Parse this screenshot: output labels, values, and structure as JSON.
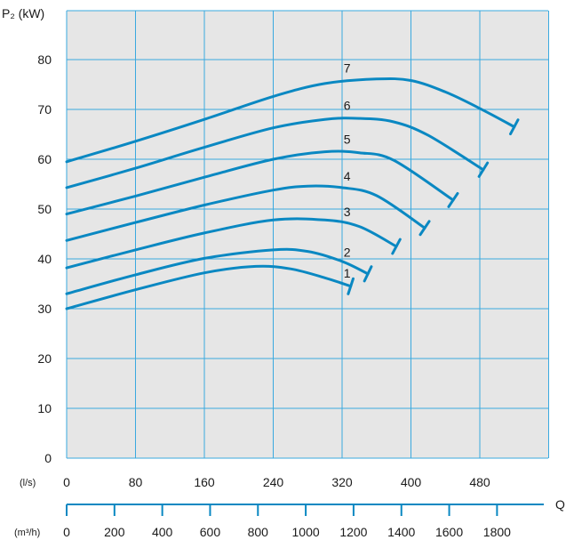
{
  "chart_data": {
    "type": "line",
    "title": "",
    "ylabel": "P₂ (kW)",
    "xlabel": "Q",
    "x_unit_ls": "(l/s)",
    "x_unit_m3h": "(m³/h)",
    "xlim": [
      0,
      560
    ],
    "ylim": [
      0,
      85
    ],
    "grid": true,
    "y_ticks": [
      0,
      10,
      20,
      30,
      40,
      50,
      60,
      70,
      80
    ],
    "x_ticks_ls": [
      0,
      80,
      160,
      240,
      320,
      400,
      480
    ],
    "x_ticks_m3h": [
      0,
      200,
      400,
      600,
      800,
      1000,
      1200,
      1400,
      1600,
      1800
    ],
    "colors": {
      "plot_bg": "#e6e6e6",
      "grid": "#3aa9df",
      "curve": "#0a88c2",
      "axis": "#0a88c2"
    },
    "series": [
      {
        "name": "1",
        "x": [
          0,
          80,
          160,
          220,
          260,
          300,
          330
        ],
        "y": [
          30,
          33.8,
          37.2,
          38.5,
          38,
          36.2,
          34.5
        ]
      },
      {
        "name": "2",
        "x": [
          0,
          80,
          160,
          240,
          280,
          320,
          350
        ],
        "y": [
          33,
          36.8,
          40.1,
          41.8,
          41.5,
          39.5,
          37
        ]
      },
      {
        "name": "3",
        "x": [
          0,
          80,
          160,
          240,
          300,
          340,
          383
        ],
        "y": [
          38.2,
          41.8,
          45.2,
          47.8,
          47.8,
          46.5,
          42.5
        ]
      },
      {
        "name": "4",
        "x": [
          0,
          80,
          160,
          240,
          280,
          320,
          360,
          416
        ],
        "y": [
          43.7,
          47.3,
          50.8,
          53.8,
          54.6,
          54.3,
          52.7,
          46.2
        ]
      },
      {
        "name": "5",
        "x": [
          0,
          80,
          160,
          240,
          300,
          340,
          380,
          449
        ],
        "y": [
          49,
          52.6,
          56.4,
          60,
          61.5,
          61.3,
          59.8,
          51.8
        ]
      },
      {
        "name": "6",
        "x": [
          0,
          80,
          160,
          240,
          300,
          340,
          380,
          420,
          484
        ],
        "y": [
          54.3,
          58.2,
          62.4,
          66.3,
          68,
          68.2,
          67.5,
          64.8,
          57.9
        ]
      },
      {
        "name": "7",
        "x": [
          0,
          80,
          160,
          240,
          300,
          360,
          400,
          440,
          480,
          520
        ],
        "y": [
          59.5,
          63.6,
          68,
          72.6,
          75.2,
          76.1,
          75.8,
          73.5,
          70.2,
          66.5
        ]
      }
    ]
  }
}
